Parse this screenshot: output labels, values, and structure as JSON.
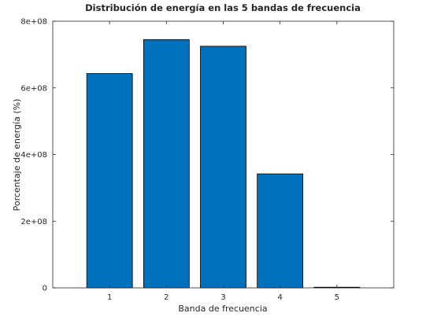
{
  "chart_data": {
    "type": "bar",
    "title": "Distribución de energía en las 5 bandas de frecuencia",
    "xlabel": "Banda de frecuencia",
    "ylabel": "Porcentaje de energía (%)",
    "categories": [
      "1",
      "2",
      "3",
      "4",
      "5"
    ],
    "values": [
      643000000,
      745000000,
      725000000,
      342000000,
      1000000
    ],
    "xlim": [
      0,
      6
    ],
    "ylim": [
      0,
      800000000
    ],
    "yticks": [
      0,
      200000000,
      400000000,
      600000000,
      800000000
    ],
    "ytick_labels": [
      "0",
      "2e+08",
      "4e+08",
      "6e+08",
      "8e+08"
    ],
    "grid": false,
    "bar_color": "#0072BD",
    "bar_edge_color": "#000000"
  }
}
